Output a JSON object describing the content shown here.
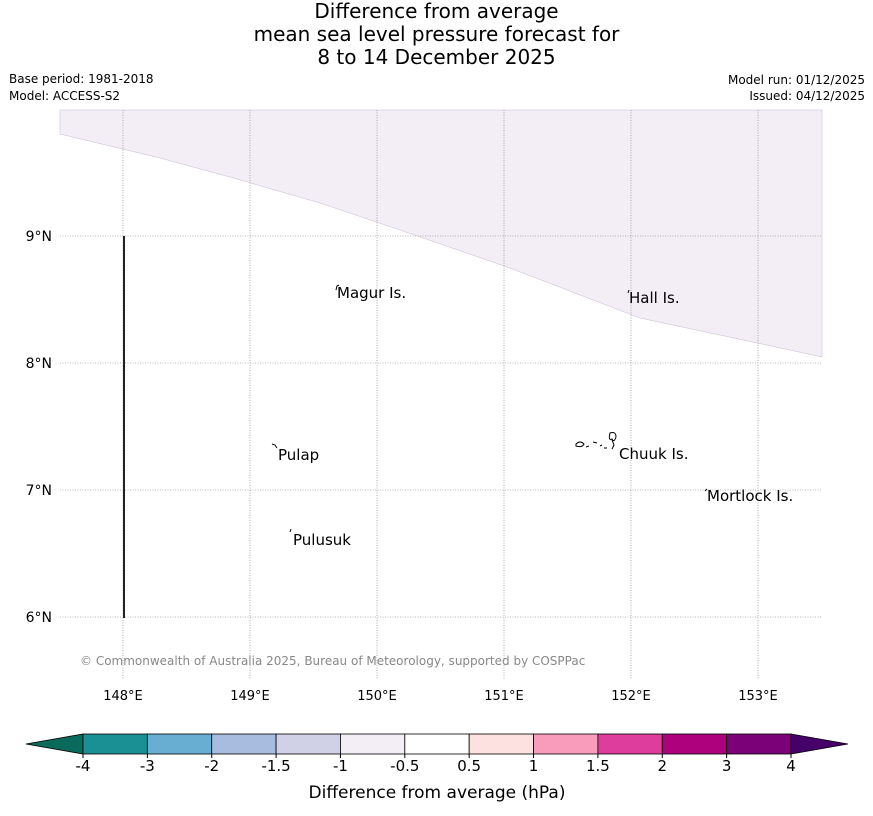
{
  "title": {
    "line1": "Difference from average",
    "line2": "mean sea level pressure forecast for",
    "line3": "8 to 14 December 2025"
  },
  "meta": {
    "base_period": "Base period: 1981-2018",
    "model": "Model: ACCESS-S2",
    "model_run": "Model run: 01/12/2025",
    "issued": "Issued: 04/12/2025"
  },
  "map": {
    "lon_labels": [
      "148°E",
      "149°E",
      "150°E",
      "151°E",
      "152°E",
      "153°E"
    ],
    "lat_labels": [
      "9°N",
      "8°N",
      "7°N",
      "6°N"
    ],
    "places": [
      {
        "name": "Magur Is.",
        "lon": 149.67,
        "lat": 8.55
      },
      {
        "name": "Hall Is.",
        "lon": 152.0,
        "lat": 8.52
      },
      {
        "name": "Pulap",
        "lon": 149.2,
        "lat": 7.3
      },
      {
        "name": "Chuuk Is.",
        "lon": 151.85,
        "lat": 7.35
      },
      {
        "name": "Mortlock Is.",
        "lon": 152.6,
        "lat": 7.0
      },
      {
        "name": "Pulusuk",
        "lon": 149.3,
        "lat": 6.67
      }
    ],
    "shaded_category": "-1 to -0.5",
    "shaded_color": "#f3edf5",
    "copyright": "© Commonwealth of Australia 2025, Bureau of Meteorology, supported by COSPPac"
  },
  "colorbar": {
    "label": "Difference from average (hPa)",
    "ticks": [
      "-4",
      "-3",
      "-2",
      "-1.5",
      "-1",
      "-0.5",
      "0.5",
      "1",
      "1.5",
      "2",
      "3",
      "4"
    ],
    "colors": [
      "#1a8f94",
      "#68aed3",
      "#a7bcde",
      "#d0d0e6",
      "#f3edf5",
      "#ffffff",
      "#fde0e0",
      "#f99cbc",
      "#de3d9e",
      "#ae017e",
      "#7a0177"
    ],
    "under_color": "#0a6b5c",
    "over_color": "#45006a"
  }
}
